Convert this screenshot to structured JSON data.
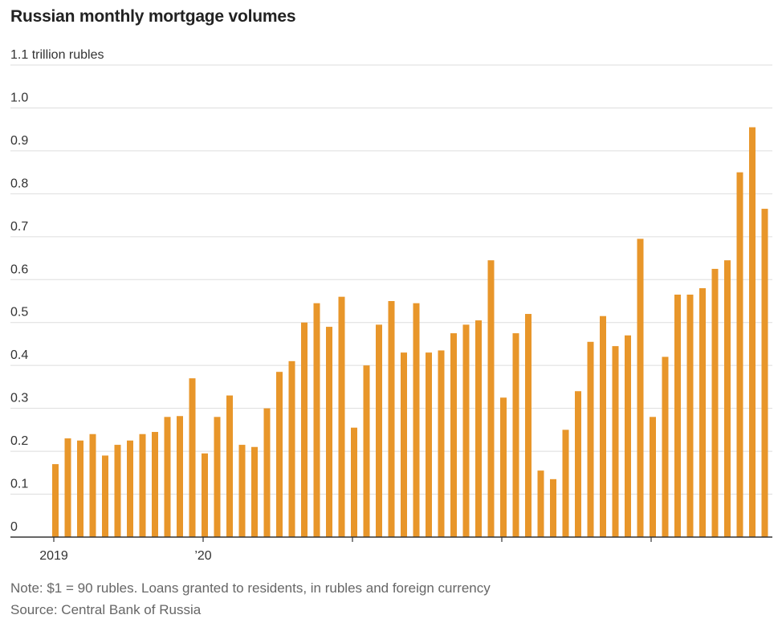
{
  "title": "Russian monthly mortgage volumes",
  "note": "Note: $1 = 90 rubles. Loans granted to residents, in rubles and foreign currency",
  "source": "Source: Central Bank of Russia",
  "colors": {
    "bar": "#E8962A",
    "grid": "#dddddd",
    "axis": "#333333"
  },
  "chart_data": {
    "type": "bar",
    "title": "Russian monthly mortgage volumes",
    "ylabel": "trillion rubles",
    "ylim": [
      0,
      1.1
    ],
    "yticks": [
      {
        "value": 0,
        "label": "0"
      },
      {
        "value": 0.1,
        "label": "0.1"
      },
      {
        "value": 0.2,
        "label": "0.2"
      },
      {
        "value": 0.3,
        "label": "0.3"
      },
      {
        "value": 0.4,
        "label": "0.4"
      },
      {
        "value": 0.5,
        "label": "0.5"
      },
      {
        "value": 0.6,
        "label": "0.6"
      },
      {
        "value": 0.7,
        "label": "0.7"
      },
      {
        "value": 0.8,
        "label": "0.8"
      },
      {
        "value": 0.9,
        "label": "0.9"
      },
      {
        "value": 1.0,
        "label": "1.0"
      },
      {
        "value": 1.1,
        "label": "1.1 trillion rubles"
      }
    ],
    "xticks": [
      {
        "index": 0,
        "label": "2019"
      },
      {
        "index": 12,
        "label": "’20"
      },
      {
        "index": 24,
        "label": ""
      },
      {
        "index": 36,
        "label": ""
      },
      {
        "index": 48,
        "label": ""
      }
    ],
    "values": [
      0.17,
      0.23,
      0.225,
      0.24,
      0.19,
      0.215,
      0.225,
      0.24,
      0.245,
      0.28,
      0.282,
      0.37,
      0.195,
      0.28,
      0.33,
      0.215,
      0.21,
      0.3,
      0.385,
      0.41,
      0.5,
      0.545,
      0.49,
      0.56,
      0.255,
      0.4,
      0.495,
      0.55,
      0.43,
      0.545,
      0.43,
      0.435,
      0.475,
      0.495,
      0.505,
      0.645,
      0.325,
      0.475,
      0.52,
      0.155,
      0.135,
      0.25,
      0.34,
      0.455,
      0.515,
      0.445,
      0.47,
      0.695,
      0.28,
      0.42,
      0.565,
      0.565,
      0.58,
      0.625,
      0.645,
      0.85,
      0.955,
      0.765
    ]
  }
}
